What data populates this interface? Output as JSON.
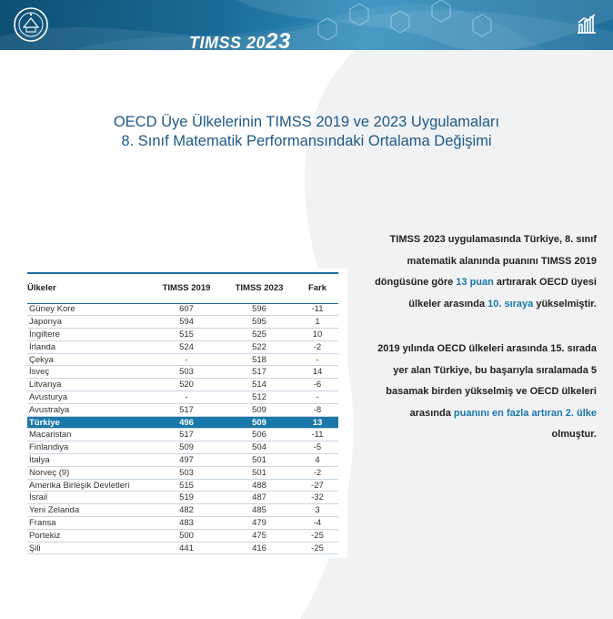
{
  "banner": {
    "title_main": "TIMSS 20",
    "title_suffix": "23",
    "logo_icon": "ministry-seal-icon",
    "chart_icon": "bar-chart-icon"
  },
  "heading": {
    "line1": "OECD Üye Ülkelerinin TIMSS 2019 ve 2023 Uygulamaları",
    "line2": "8. Sınıf Matematik Performansındaki Ortalama Değişimi"
  },
  "table": {
    "headers": [
      "Ülkeler",
      "TIMSS 2019",
      "TIMSS 2023",
      "Fark"
    ],
    "rows": [
      [
        "Güney Kore",
        "607",
        "596",
        "-11"
      ],
      [
        "Japonya",
        "594",
        "595",
        "1"
      ],
      [
        "İngiltere",
        "515",
        "525",
        "10"
      ],
      [
        "İrlanda",
        "524",
        "522",
        "-2"
      ],
      [
        "Çekya",
        "-",
        "518",
        "-"
      ],
      [
        "İsveç",
        "503",
        "517",
        "14"
      ],
      [
        "Litvanya",
        "520",
        "514",
        "-6"
      ],
      [
        "Avusturya",
        "-",
        "512",
        "-"
      ],
      [
        "Avustralya",
        "517",
        "509",
        "-8"
      ],
      [
        "Türkiye",
        "496",
        "509",
        "13"
      ],
      [
        "Macaristan",
        "517",
        "506",
        "-11"
      ],
      [
        "Finlandiya",
        "509",
        "504",
        "-5"
      ],
      [
        "İtalya",
        "497",
        "501",
        "4"
      ],
      [
        "Norveç (9)",
        "503",
        "501",
        "-2"
      ],
      [
        "Amerika Birleşik Devletleri",
        "515",
        "488",
        "-27"
      ],
      [
        "İsrail",
        "519",
        "487",
        "-32"
      ],
      [
        "Yeni Zelanda",
        "482",
        "485",
        "3"
      ],
      [
        "Fransa",
        "483",
        "479",
        "-4"
      ],
      [
        "Portekiz",
        "500",
        "475",
        "-25"
      ],
      [
        "Şili",
        "441",
        "416",
        "-25"
      ]
    ],
    "highlight_row": 9,
    "highlight_color": "#1a78a8"
  },
  "info": {
    "p1": [
      {
        "t": "TIMSS 2023 uygulamasında Türkiye, 8. sınıf matematik alanında puanını TIMSS 2019 döngüsüne göre ",
        "h": false
      },
      {
        "t": "13 puan",
        "h": true
      },
      {
        "t": " artırarak OECD üyesi ülkeler arasında ",
        "h": false
      },
      {
        "t": "10. sıraya",
        "h": true
      },
      {
        "t": " yükselmiştir.",
        "h": false
      }
    ],
    "p2": [
      {
        "t": "2019 yılında OECD ülkeleri arasında 15. sırada yer alan Türkiye, bu başarıyla sıralamada 5 basamak birden yükselmiş ve OECD ülkeleri arasında ",
        "h": false
      },
      {
        "t": "puanını en fazla artıran 2. ülke",
        "h": true
      },
      {
        "t": " olmuştur.",
        "h": false
      }
    ]
  }
}
